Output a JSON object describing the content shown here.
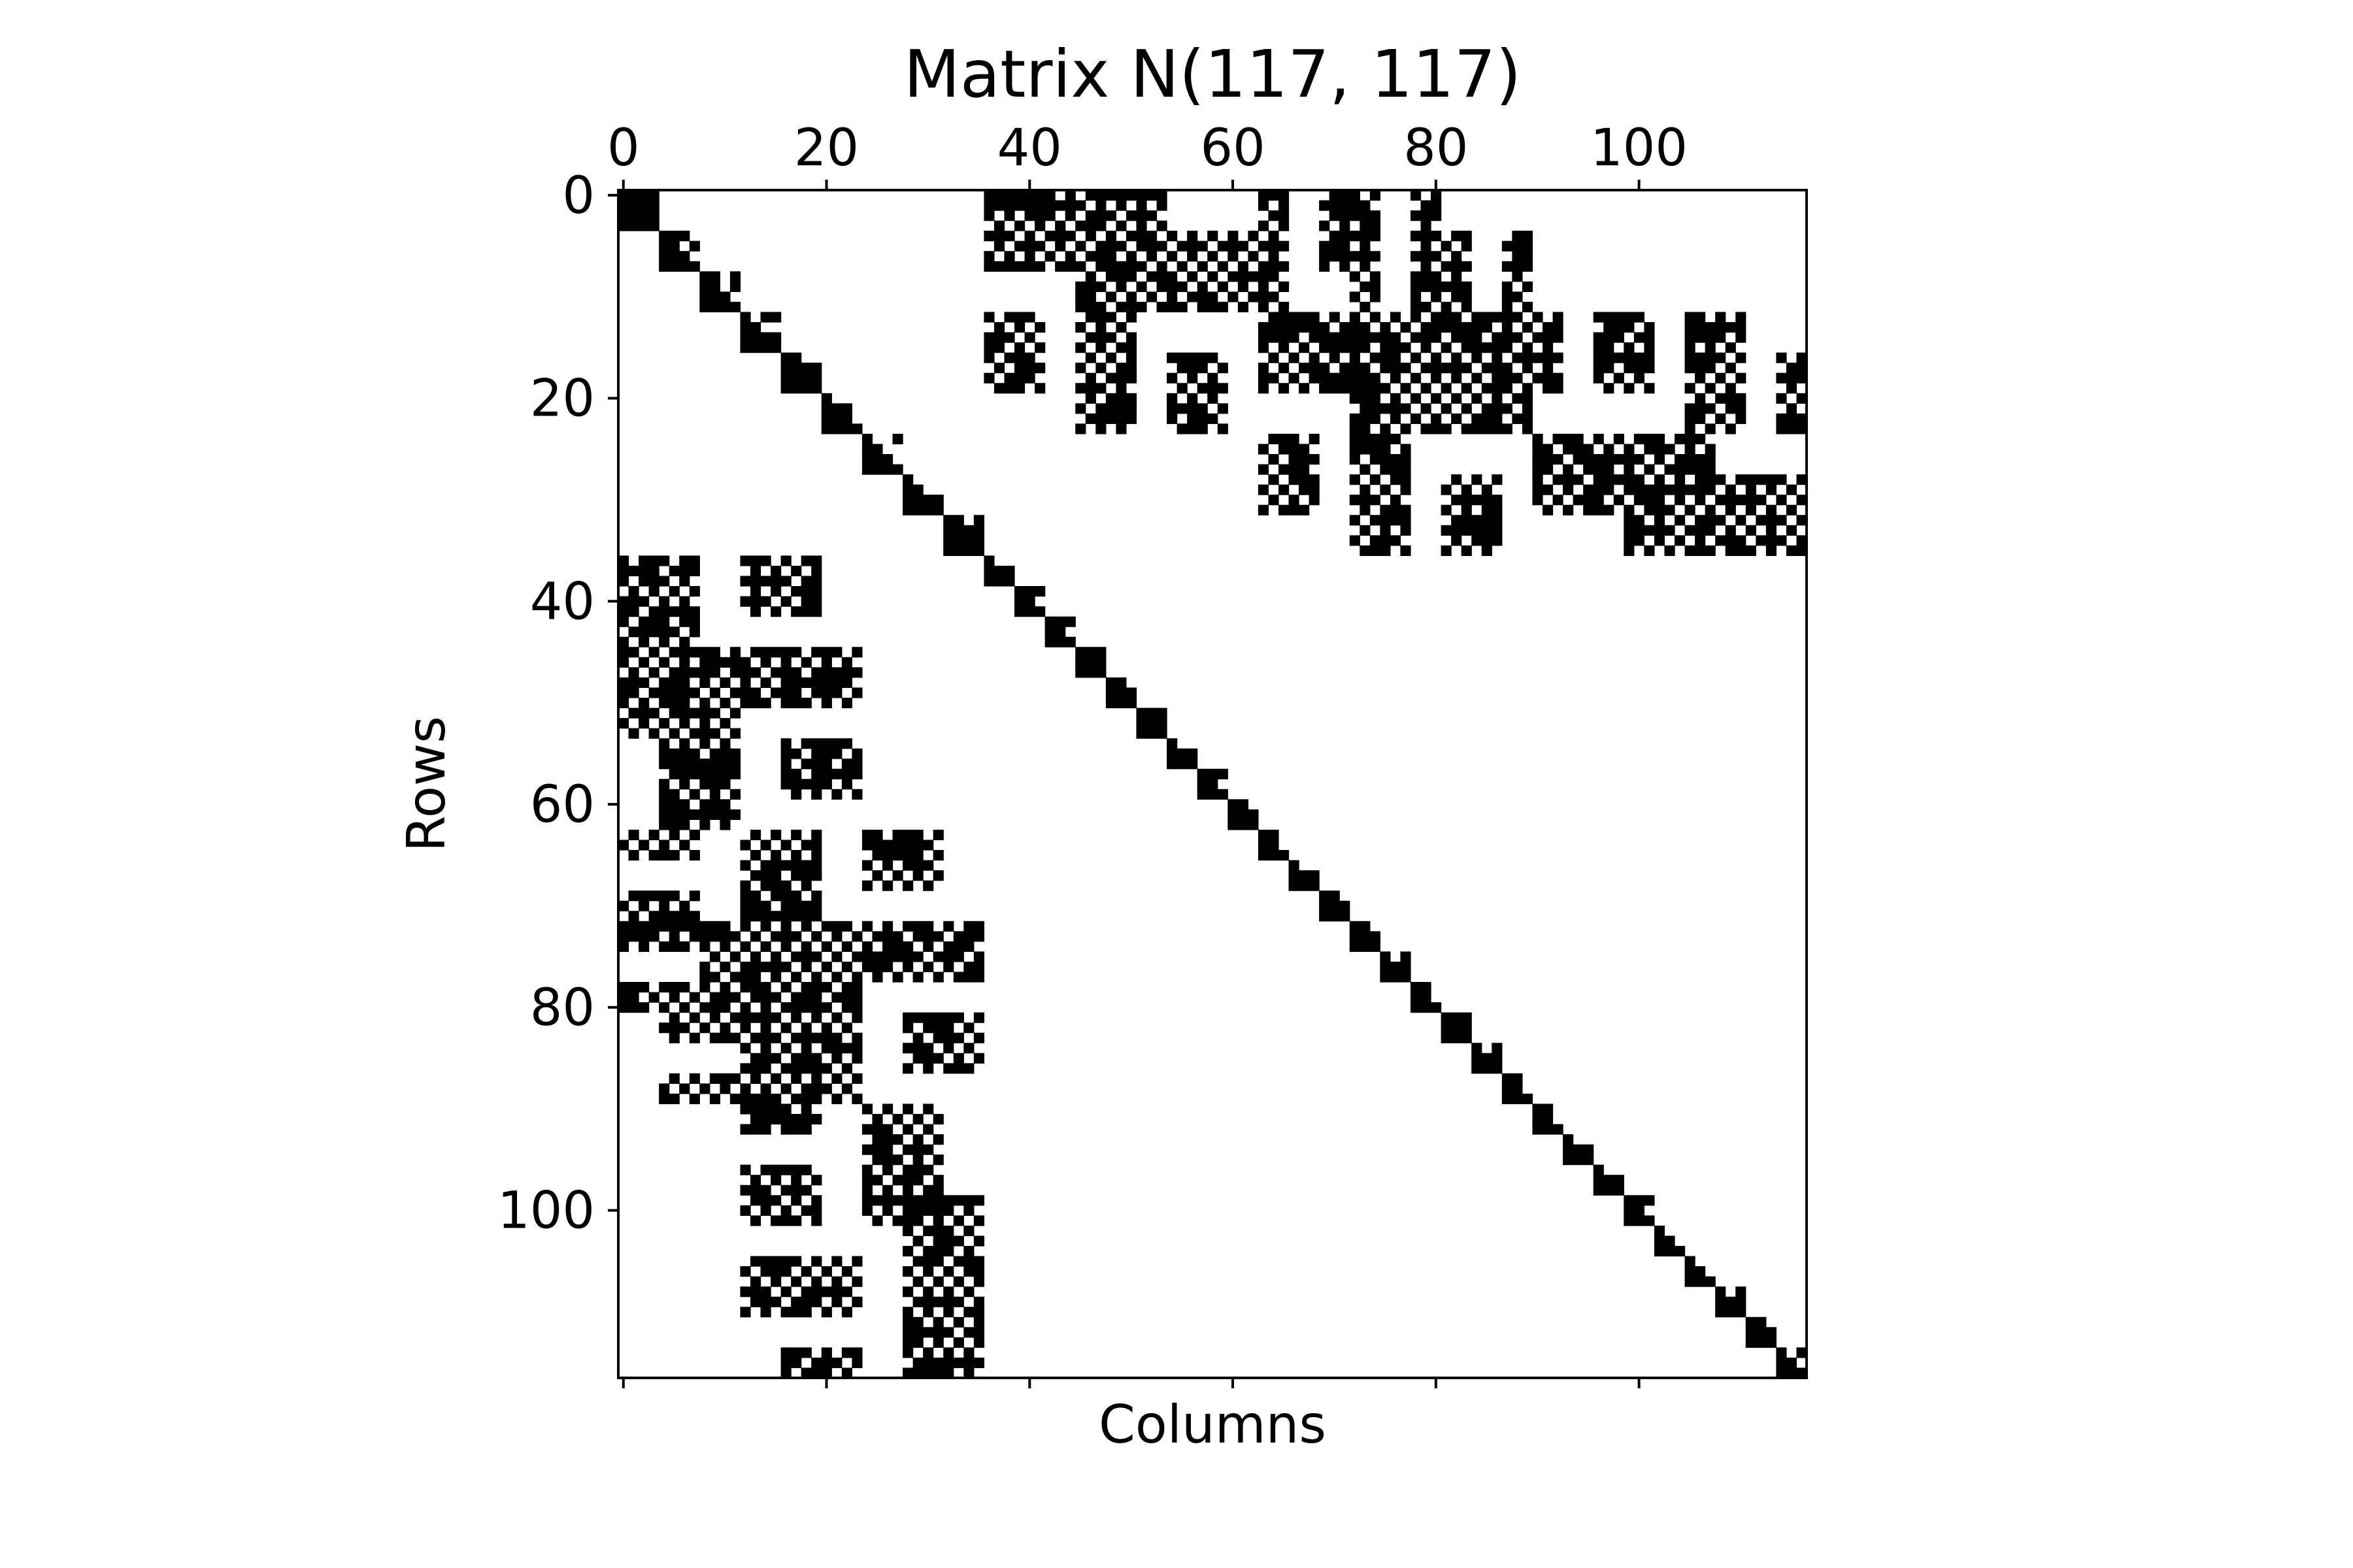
{
  "chart_data": {
    "type": "heatmap",
    "subtype": "sparsity-pattern",
    "title": "Matrix N(117, 117)",
    "xlabel": "Columns",
    "ylabel": "Rows",
    "shape": [
      117,
      117
    ],
    "x_ticks": [
      0,
      20,
      40,
      60,
      80,
      100
    ],
    "y_ticks": [
      0,
      20,
      40,
      60,
      80,
      100
    ],
    "x_tick_labels": [
      "0",
      "20",
      "40",
      "60",
      "80",
      "100"
    ],
    "y_tick_labels": [
      "0",
      "20",
      "40",
      "60",
      "80",
      "100"
    ],
    "x_tick_position": "top",
    "y_axis": "inverted",
    "grid": false,
    "nonzero_color": "#000000",
    "zero_color": "#ffffff",
    "diagonal_blocks": [
      {
        "start": 0,
        "size": 4
      },
      {
        "start": 4,
        "size": 4
      },
      {
        "start": 8,
        "size": 4
      },
      {
        "start": 12,
        "size": 4
      },
      {
        "start": 16,
        "size": 4
      },
      {
        "start": 20,
        "size": 4
      },
      {
        "start": 24,
        "size": 4
      },
      {
        "start": 28,
        "size": 4
      },
      {
        "start": 32,
        "size": 4
      },
      {
        "start": 36,
        "size": 3
      },
      {
        "start": 39,
        "size": 3
      },
      {
        "start": 42,
        "size": 3
      },
      {
        "start": 45,
        "size": 3
      },
      {
        "start": 48,
        "size": 3
      },
      {
        "start": 51,
        "size": 3
      },
      {
        "start": 54,
        "size": 3
      },
      {
        "start": 57,
        "size": 3
      },
      {
        "start": 60,
        "size": 3
      },
      {
        "start": 63,
        "size": 3
      },
      {
        "start": 66,
        "size": 3
      },
      {
        "start": 69,
        "size": 3
      },
      {
        "start": 72,
        "size": 3
      },
      {
        "start": 75,
        "size": 3
      },
      {
        "start": 78,
        "size": 3
      },
      {
        "start": 81,
        "size": 3
      },
      {
        "start": 84,
        "size": 3
      },
      {
        "start": 87,
        "size": 3
      },
      {
        "start": 90,
        "size": 3
      },
      {
        "start": 93,
        "size": 3
      },
      {
        "start": 96,
        "size": 3
      },
      {
        "start": 99,
        "size": 3
      },
      {
        "start": 102,
        "size": 3
      },
      {
        "start": 105,
        "size": 3
      },
      {
        "start": 108,
        "size": 3
      },
      {
        "start": 111,
        "size": 3
      },
      {
        "start": 114,
        "size": 3
      }
    ],
    "upper_blocks": [
      {
        "rows": [
          0,
          8
        ],
        "cols": [
          36,
          54
        ]
      },
      {
        "rows": [
          0,
          4
        ],
        "cols": [
          63,
          66
        ]
      },
      {
        "rows": [
          0,
          8
        ],
        "cols": [
          69,
          75
        ]
      },
      {
        "rows": [
          0,
          4
        ],
        "cols": [
          78,
          81
        ]
      },
      {
        "rows": [
          4,
          12
        ],
        "cols": [
          45,
          66
        ]
      },
      {
        "rows": [
          4,
          12
        ],
        "cols": [
          78,
          84
        ]
      },
      {
        "rows": [
          4,
          12
        ],
        "cols": [
          87,
          90
        ]
      },
      {
        "rows": [
          8,
          12
        ],
        "cols": [
          72,
          75
        ]
      },
      {
        "rows": [
          12,
          20
        ],
        "cols": [
          36,
          42
        ]
      },
      {
        "rows": [
          12,
          24
        ],
        "cols": [
          45,
          51
        ]
      },
      {
        "rows": [
          16,
          24
        ],
        "cols": [
          54,
          60
        ]
      },
      {
        "rows": [
          12,
          20
        ],
        "cols": [
          63,
          93
        ]
      },
      {
        "rows": [
          16,
          24
        ],
        "cols": [
          72,
          90
        ]
      },
      {
        "rows": [
          12,
          20
        ],
        "cols": [
          96,
          102
        ]
      },
      {
        "rows": [
          12,
          24
        ],
        "cols": [
          105,
          111
        ]
      },
      {
        "rows": [
          16,
          24
        ],
        "cols": [
          114,
          117
        ]
      },
      {
        "rows": [
          24,
          32
        ],
        "cols": [
          63,
          69
        ]
      },
      {
        "rows": [
          24,
          36
        ],
        "cols": [
          72,
          78
        ]
      },
      {
        "rows": [
          28,
          36
        ],
        "cols": [
          81,
          87
        ]
      },
      {
        "rows": [
          24,
          32
        ],
        "cols": [
          90,
          108
        ]
      },
      {
        "rows": [
          28,
          36
        ],
        "cols": [
          99,
          117
        ]
      }
    ],
    "lower_blocks": [
      {
        "rows": [
          36,
          54
        ],
        "cols": [
          0,
          8
        ]
      },
      {
        "rows": [
          36,
          42
        ],
        "cols": [
          12,
          20
        ]
      },
      {
        "rows": [
          45,
          51
        ],
        "cols": [
          8,
          24
        ]
      },
      {
        "rows": [
          51,
          63
        ],
        "cols": [
          4,
          12
        ]
      },
      {
        "rows": [
          54,
          60
        ],
        "cols": [
          16,
          24
        ]
      },
      {
        "rows": [
          63,
          66
        ],
        "cols": [
          0,
          8
        ]
      },
      {
        "rows": [
          63,
          75
        ],
        "cols": [
          12,
          20
        ]
      },
      {
        "rows": [
          63,
          69
        ],
        "cols": [
          24,
          32
        ]
      },
      {
        "rows": [
          69,
          75
        ],
        "cols": [
          0,
          8
        ]
      },
      {
        "rows": [
          72,
          78
        ],
        "cols": [
          8,
          36
        ]
      },
      {
        "rows": [
          75,
          90
        ],
        "cols": [
          12,
          24
        ]
      },
      {
        "rows": [
          78,
          81
        ],
        "cols": [
          0,
          4
        ]
      },
      {
        "rows": [
          78,
          84
        ],
        "cols": [
          4,
          12
        ]
      },
      {
        "rows": [
          81,
          87
        ],
        "cols": [
          28,
          36
        ]
      },
      {
        "rows": [
          87,
          90
        ],
        "cols": [
          4,
          12
        ]
      },
      {
        "rows": [
          90,
          93
        ],
        "cols": [
          12,
          20
        ]
      },
      {
        "rows": [
          90,
          102
        ],
        "cols": [
          24,
          32
        ]
      },
      {
        "rows": [
          96,
          102
        ],
        "cols": [
          12,
          20
        ]
      },
      {
        "rows": [
          99,
          117
        ],
        "cols": [
          28,
          36
        ]
      },
      {
        "rows": [
          105,
          111
        ],
        "cols": [
          12,
          24
        ]
      },
      {
        "rows": [
          114,
          117
        ],
        "cols": [
          16,
          24
        ]
      }
    ]
  }
}
